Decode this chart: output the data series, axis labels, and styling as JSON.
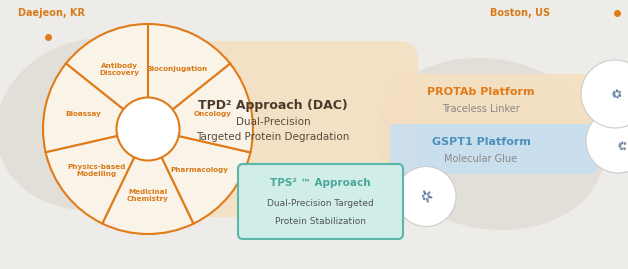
{
  "bg_color": "#EEECe8",
  "orange": "#E07B1A",
  "light_orange_fill": "#F5E0C0",
  "light_blue_fill": "#C8DFF0",
  "teal": "#5BB5A8",
  "teal_light": "#D0EDE8",
  "wheel_bg": "#FAF3E8",
  "text_orange": "#D97A18",
  "text_blue": "#4A90B8",
  "text_dark": "#555555",
  "text_teal": "#4AA898",
  "daejeon_label": "Daejeon, KR",
  "boston_label": "Boston, US",
  "wheel_sections": [
    "Antibody\nDiscovery",
    "Bioconjugation",
    "Oncology",
    "Pharmacology",
    "Medicinal\nChemistry",
    "Physics-based\nModelling",
    "Bioassay"
  ],
  "center_title": "TPD² Approach (DAC)",
  "center_sub1": "Dual-Precision",
  "center_sub2": "Targeted Protein Degradation",
  "box1_title": "GSPT1 Platform",
  "box1_sub": "Molecular Glue",
  "box2_title": "PROTAb Platform",
  "box2_sub": "Traceless Linker",
  "tps_title": "TPS² ™ Approach",
  "tps_sub1": "Dual-Precision Targeted",
  "tps_sub2": "Protein Stabilization",
  "map_color": "#DEDAD2",
  "white": "#FFFFFF",
  "circle_edge": "#CCCCCC"
}
